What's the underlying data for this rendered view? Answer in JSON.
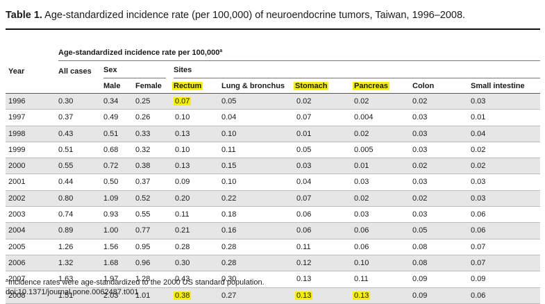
{
  "table": {
    "label": "Table 1.",
    "title": "Age-standardized incidence rate (per 100,000) of neuroendocrine tumors, Taiwan, 1996–2008.",
    "spanner": "Age-standardized incidence rate per 100,000",
    "spanner_note_marker": "a",
    "headers": {
      "year": "Year",
      "all_cases": "All cases",
      "sex": "Sex",
      "male": "Male",
      "female": "Female",
      "sites": "Sites",
      "rectum": "Rectum",
      "lung": "Lung & bronchus",
      "stomach": "Stomach",
      "pancreas": "Pancreas",
      "colon": "Colon",
      "small_intestine": "Small intestine"
    },
    "highlighted_headers": [
      "rectum",
      "stomach",
      "pancreas"
    ],
    "highlight_color": "#f7f100",
    "rows": [
      [
        "1996",
        "0.30",
        "0.34",
        "0.25",
        "0.07",
        "0.05",
        "0.02",
        "0.02",
        "0.02",
        "0.03"
      ],
      [
        "1997",
        "0.37",
        "0.49",
        "0.26",
        "0.10",
        "0.04",
        "0.07",
        "0.004",
        "0.03",
        "0.01"
      ],
      [
        "1998",
        "0.43",
        "0.51",
        "0.33",
        "0.13",
        "0.10",
        "0.01",
        "0.02",
        "0.03",
        "0.04"
      ],
      [
        "1999",
        "0.51",
        "0.68",
        "0.32",
        "0.10",
        "0.11",
        "0.05",
        "0.005",
        "0.03",
        "0.02"
      ],
      [
        "2000",
        "0.55",
        "0.72",
        "0.38",
        "0.13",
        "0.15",
        "0.03",
        "0.01",
        "0.02",
        "0.02"
      ],
      [
        "2001",
        "0.44",
        "0.50",
        "0.37",
        "0.09",
        "0.10",
        "0.04",
        "0.03",
        "0.03",
        "0.03"
      ],
      [
        "2002",
        "0.80",
        "1.09",
        "0.52",
        "0.20",
        "0.22",
        "0.07",
        "0.02",
        "0.02",
        "0.03"
      ],
      [
        "2003",
        "0.74",
        "0.93",
        "0.55",
        "0.11",
        "0.18",
        "0.06",
        "0.03",
        "0.03",
        "0.06"
      ],
      [
        "2004",
        "0.89",
        "1.00",
        "0.77",
        "0.21",
        "0.16",
        "0.06",
        "0.06",
        "0.05",
        "0.06"
      ],
      [
        "2005",
        "1.26",
        "1.56",
        "0.95",
        "0.28",
        "0.28",
        "0.11",
        "0.06",
        "0.08",
        "0.07"
      ],
      [
        "2006",
        "1.32",
        "1.68",
        "0.96",
        "0.30",
        "0.28",
        "0.12",
        "0.10",
        "0.08",
        "0.07"
      ],
      [
        "2007",
        "1.63",
        "1.97",
        "1.28",
        "0.43",
        "0.30",
        "0.13",
        "0.11",
        "0.09",
        "0.09"
      ],
      [
        "2008",
        "1.51",
        "2.03",
        "1.01",
        "0.38",
        "0.27",
        "0.13",
        "0.13",
        "0.09",
        "0.06"
      ]
    ],
    "highlighted_cells": [
      [
        0,
        4
      ],
      [
        12,
        4
      ],
      [
        12,
        6
      ],
      [
        12,
        7
      ]
    ],
    "footnote_marker": "a",
    "footnote": "Incidence rates were age-standardized to the 2000 US standard population.",
    "doi": "doi:10.1371/journal.pone.0062487.t001"
  }
}
